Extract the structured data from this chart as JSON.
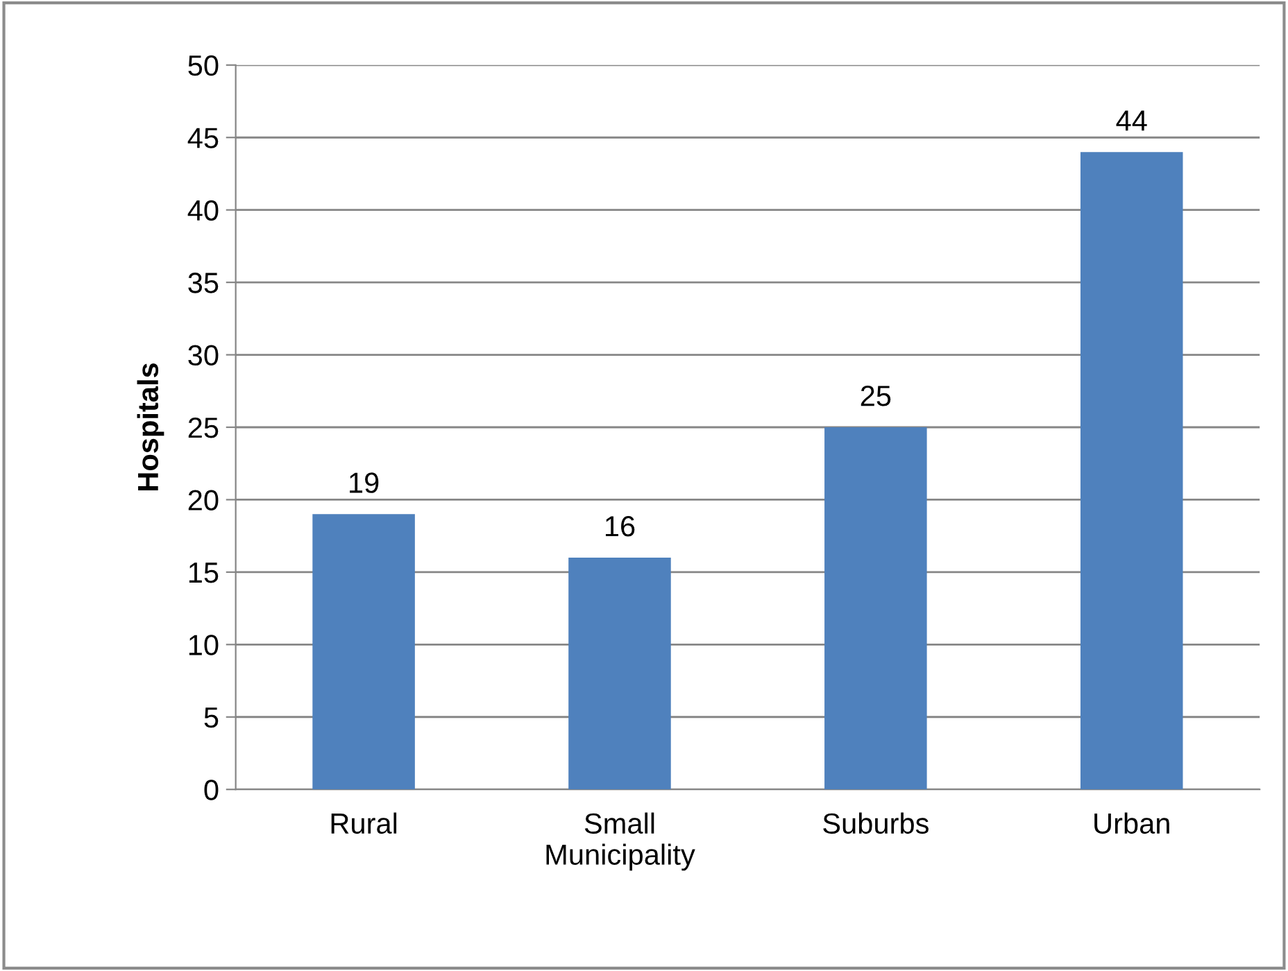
{
  "chart_data": {
    "type": "bar",
    "ylabel": "Hospitals",
    "categories": [
      "Rural",
      "Small\nMunicipality",
      "Suburbs",
      "Urban"
    ],
    "values": [
      19,
      16,
      25,
      44
    ],
    "color": "#4f81bd",
    "ylim": [
      0,
      50
    ],
    "yticks": [
      0,
      5,
      10,
      15,
      20,
      25,
      30,
      35,
      40,
      45,
      50
    ],
    "grid": "y",
    "data_labels": true
  }
}
